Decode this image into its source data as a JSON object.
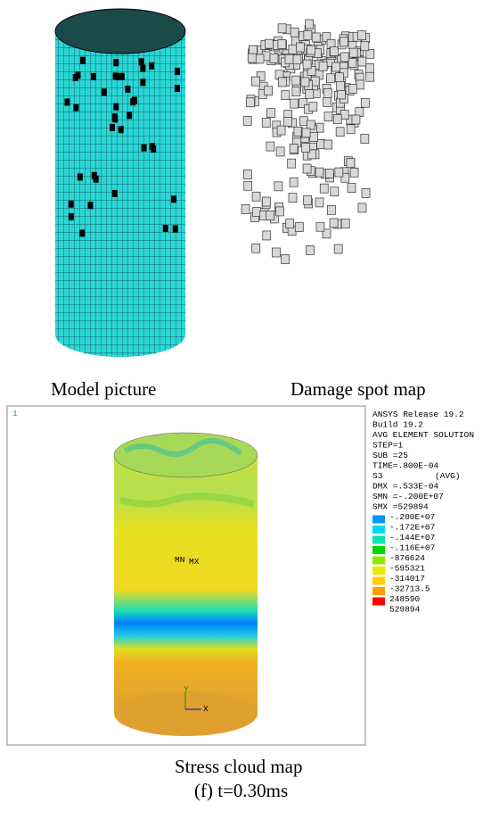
{
  "captions": {
    "model": "Model picture",
    "damage": "Damage spot map",
    "stress": "Stress cloud map",
    "subfigure": "(f) t=0.30ms"
  },
  "ansys": {
    "corner": "1",
    "lines": [
      "ANSYS Release 19.2",
      "Build 19.2",
      "AVG ELEMENT SOLUTION",
      "STEP=1",
      "SUB =25",
      "TIME=.800E-04"
    ],
    "s3": "S3",
    "avg": "(AVG)",
    "stats": [
      "DMX =.533E-04",
      "SMN =-.200E+07",
      "SMX =529894"
    ],
    "legend": {
      "labels": [
        "-.200E+07",
        "-.172E+07",
        "-.144E+07",
        "-.116E+07",
        "-876624",
        "-595321",
        "-314017",
        "-32713.5",
        "248590",
        "529894"
      ],
      "colors": [
        "#0000ff",
        "#0096ff",
        "#00d8f0",
        "#00e8b0",
        "#00d800",
        "#90e800",
        "#e8e800",
        "#ffd000",
        "#ff9a00",
        "#ff0000"
      ]
    },
    "mn": "MN",
    "mx": "MX",
    "axis_x": "X",
    "axis_y": "Y"
  }
}
